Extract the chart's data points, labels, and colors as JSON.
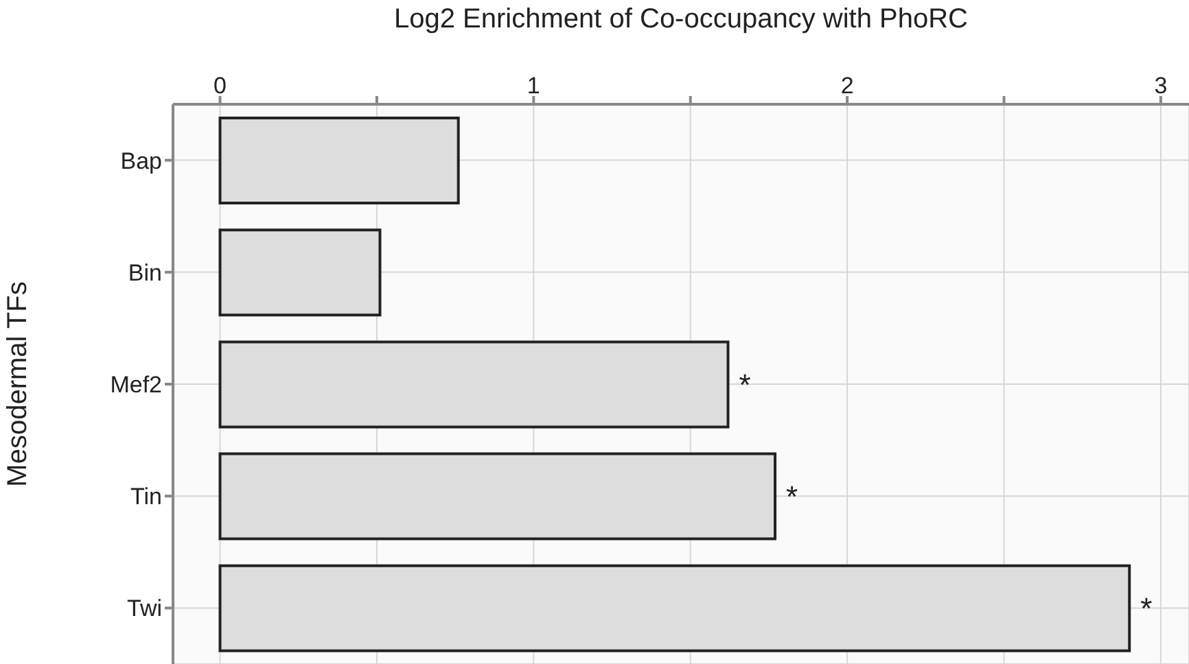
{
  "chart_data": {
    "type": "bar",
    "orientation": "horizontal",
    "xlabel": "Log2 Enrichment of Co-occupancy with PhoRC",
    "ylabel": "Mesodermal TFs",
    "categories": [
      "Bap",
      "Bin",
      "Mef2",
      "Tin",
      "Twi"
    ],
    "values": [
      0.76,
      0.51,
      1.62,
      1.77,
      2.9
    ],
    "color": "#dddddd",
    "xlim": [
      -0.15,
      3.09
    ],
    "xticks": [
      0,
      {
        "value": 0.5,
        "label": null
      },
      1,
      {
        "value": 1.5,
        "label": null
      },
      2,
      {
        "value": 2.5,
        "label": null
      },
      3
    ],
    "grid": true,
    "annotations": [
      {
        "text": "*",
        "x": 1.62,
        "y": "Mef2"
      },
      {
        "text": "*",
        "x": 1.77,
        "y": "Tin"
      },
      {
        "text": "*",
        "x": 2.9,
        "y": "Twi"
      }
    ]
  }
}
